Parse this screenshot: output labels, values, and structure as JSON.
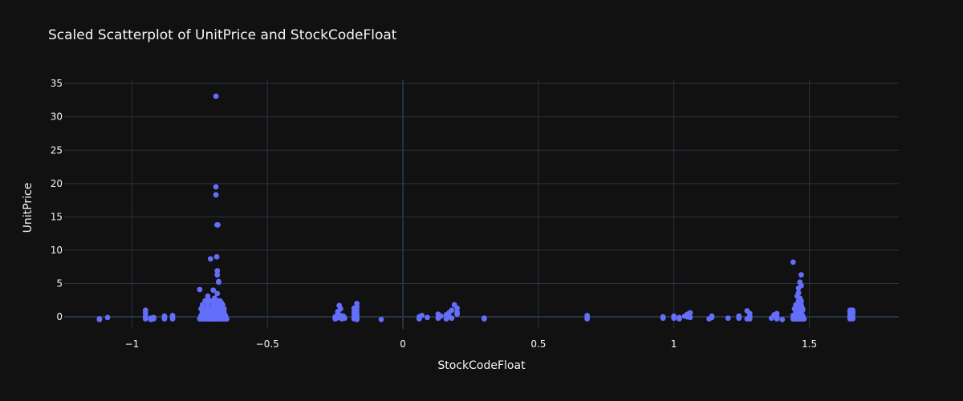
{
  "chart_data": {
    "type": "scatter",
    "title": "Scaled Scatterplot of UnitPrice and StockCodeFloat",
    "xlabel": "StockCodeFloat",
    "ylabel": "UnitPrice",
    "xlim": [
      -1.25,
      1.83
    ],
    "ylim": [
      -1.8,
      35.5
    ],
    "x_ticks": [
      -1,
      -0.5,
      0,
      0.5,
      1,
      1.5
    ],
    "x_tick_labels": [
      "−1",
      "−0.5",
      "0",
      "0.5",
      "1",
      "1.5"
    ],
    "y_ticks": [
      0,
      5,
      10,
      15,
      20,
      25,
      30,
      35
    ],
    "y_tick_labels": [
      "0",
      "5",
      "10",
      "15",
      "20",
      "25",
      "30",
      "35"
    ],
    "grid": true,
    "colors": {
      "background": "#111111",
      "grid": "#283442",
      "zeroline": "#283442",
      "marker": "#636efa",
      "text": "#f2f5fa"
    },
    "series": [
      {
        "x": [
          -1.12,
          -1.12,
          -1.09,
          -0.95,
          -0.95,
          -0.95,
          -0.95,
          -0.93,
          -0.93,
          -0.92,
          -0.92,
          -0.88,
          -0.88,
          -0.88,
          -0.85,
          -0.85,
          -0.85,
          -0.75,
          -0.745,
          -0.74,
          -0.735,
          -0.73,
          -0.73,
          -0.725,
          -0.72,
          -0.72,
          -0.715,
          -0.71,
          -0.71,
          -0.705,
          -0.7,
          -0.7,
          -0.695,
          -0.69,
          -0.69,
          -0.685,
          -0.68,
          -0.68,
          -0.675,
          -0.67,
          -0.665,
          -0.66,
          -0.655,
          -0.65,
          -0.745,
          -0.74,
          -0.73,
          -0.725,
          -0.72,
          -0.715,
          -0.71,
          -0.7,
          -0.695,
          -0.69,
          -0.685,
          -0.68,
          -0.675,
          -0.67,
          -0.665,
          -0.66,
          -0.655,
          -0.74,
          -0.735,
          -0.73,
          -0.72,
          -0.715,
          -0.71,
          -0.7,
          -0.695,
          -0.69,
          -0.68,
          -0.675,
          -0.67,
          -0.665,
          -0.66,
          -0.745,
          -0.73,
          -0.72,
          -0.71,
          -0.7,
          -0.69,
          -0.68,
          -0.67,
          -0.66,
          -0.74,
          -0.72,
          -0.7,
          -0.685,
          -0.68,
          -0.67,
          -0.665,
          -0.73,
          -0.72,
          -0.71,
          -0.7,
          -0.69,
          -0.68,
          -0.675,
          -0.75,
          -0.72,
          -0.695,
          -0.685,
          -0.68,
          -0.68,
          -0.685,
          -0.67,
          -0.7,
          -0.71,
          -0.685,
          -0.69,
          -0.69,
          -0.69,
          -0.686,
          -0.683,
          -0.687,
          -0.684,
          -0.25,
          -0.245,
          -0.24,
          -0.235,
          -0.23,
          -0.225,
          -0.22,
          -0.215,
          -0.25,
          -0.24,
          -0.23,
          -0.22,
          -0.23,
          -0.235,
          -0.24,
          -0.18,
          -0.18,
          -0.18,
          -0.18,
          -0.18,
          -0.17,
          -0.17,
          -0.17,
          -0.17,
          -0.17,
          -0.17,
          -0.17,
          -0.08,
          0.06,
          0.06,
          0.07,
          0.09,
          0.13,
          0.13,
          0.14,
          0.16,
          0.16,
          0.17,
          0.17,
          0.18,
          0.18,
          0.19,
          0.2,
          0.2,
          0.2,
          0.3,
          0.3,
          0.68,
          0.68,
          0.68,
          0.96,
          0.96,
          1.0,
          1.0,
          1.02,
          1.02,
          1.04,
          1.05,
          1.05,
          1.06,
          1.06,
          1.13,
          1.14,
          1.14,
          1.2,
          1.24,
          1.24,
          1.27,
          1.27,
          1.28,
          1.28,
          1.28,
          1.36,
          1.37,
          1.38,
          1.38,
          1.38,
          1.4,
          1.44,
          1.44,
          1.445,
          1.45,
          1.45,
          1.455,
          1.46,
          1.46,
          1.465,
          1.47,
          1.47,
          1.475,
          1.48,
          1.48,
          1.44,
          1.445,
          1.45,
          1.455,
          1.46,
          1.465,
          1.47,
          1.475,
          1.45,
          1.46,
          1.47,
          1.445,
          1.455,
          1.465,
          1.475,
          1.45,
          1.46,
          1.47,
          1.46,
          1.465,
          1.47,
          1.455,
          1.46,
          1.47,
          1.465,
          1.47,
          1.44,
          1.46,
          1.47,
          1.475,
          1.65,
          1.65,
          1.65,
          1.66,
          1.66,
          1.66,
          1.66,
          1.65,
          1.66,
          1.65
        ],
        "y": [
          -0.4,
          -0.3,
          -0.1,
          1.0,
          0.6,
          0.1,
          -0.3,
          -0.4,
          -0.2,
          -0.3,
          -0.1,
          -0.3,
          -0.1,
          0.1,
          -0.3,
          -0.1,
          0.2,
          -0.3,
          -0.3,
          -0.3,
          -0.3,
          -0.3,
          -0.3,
          -0.3,
          -0.3,
          -0.3,
          -0.3,
          -0.3,
          -0.3,
          -0.3,
          -0.3,
          -0.3,
          -0.3,
          -0.3,
          -0.3,
          -0.3,
          -0.3,
          -0.3,
          -0.3,
          -0.3,
          -0.3,
          -0.3,
          -0.3,
          -0.3,
          0.2,
          0.2,
          0.2,
          0.2,
          0.2,
          0.2,
          0.2,
          0.2,
          0.2,
          0.2,
          0.2,
          0.2,
          0.2,
          0.2,
          0.2,
          0.2,
          0.2,
          0.7,
          0.7,
          0.7,
          0.7,
          0.7,
          0.7,
          0.7,
          0.7,
          0.7,
          0.7,
          0.7,
          0.7,
          0.7,
          0.7,
          1.2,
          1.2,
          1.2,
          1.2,
          1.2,
          1.2,
          1.2,
          1.2,
          1.2,
          1.8,
          1.8,
          1.8,
          1.8,
          1.8,
          1.8,
          1.8,
          2.4,
          2.4,
          2.4,
          2.4,
          2.4,
          2.4,
          2.4,
          4.1,
          3.1,
          2.8,
          3.5,
          5.3,
          5.2,
          6.9,
          2.1,
          4.0,
          8.7,
          6.3,
          33.1,
          19.5,
          18.3,
          13.8,
          13.8,
          9.0,
          2.0,
          0.0,
          -0.2,
          0.3,
          -0.1,
          0.2,
          -0.3,
          0.0,
          -0.2,
          -0.3,
          0.5,
          -0.1,
          0.1,
          1.2,
          1.7,
          0.8,
          -0.3,
          0.0,
          0.4,
          0.8,
          1.3,
          2.0,
          1.5,
          1.0,
          0.5,
          0.1,
          -0.2,
          -0.4,
          -0.4,
          -0.3,
          0.0,
          0.2,
          -0.1,
          -0.2,
          0.4,
          0.1,
          -0.3,
          0.3,
          0.0,
          0.6,
          1.0,
          -0.2,
          1.8,
          1.3,
          0.7,
          0.4,
          -0.2,
          -0.3,
          -0.3,
          0.0,
          0.2,
          -0.2,
          0.0,
          -0.2,
          0.1,
          -0.3,
          -0.1,
          0.1,
          0.0,
          0.4,
          -0.1,
          0.6,
          -0.3,
          -0.1,
          0.1,
          -0.2,
          0.1,
          -0.2,
          -0.3,
          0.9,
          0.5,
          0.1,
          -0.3,
          -0.2,
          0.3,
          0.5,
          -0.3,
          0.0,
          -0.4,
          -0.3,
          -0.3,
          -0.3,
          -0.3,
          -0.3,
          -0.3,
          -0.3,
          -0.3,
          -0.3,
          -0.3,
          -0.3,
          -0.3,
          -0.3,
          -0.3,
          0.2,
          0.2,
          0.2,
          0.2,
          0.2,
          0.2,
          0.2,
          0.2,
          0.7,
          0.7,
          0.7,
          1.2,
          1.2,
          1.2,
          1.2,
          1.8,
          1.8,
          1.8,
          2.4,
          2.8,
          2.4,
          3.1,
          4.3,
          4.7,
          5.2,
          6.3,
          8.2,
          3.6,
          1.6,
          1.0,
          -0.3,
          0.0,
          0.3,
          -0.3,
          0.1,
          0.5,
          1.0,
          0.8,
          0.7,
          1.0
        ]
      }
    ]
  }
}
